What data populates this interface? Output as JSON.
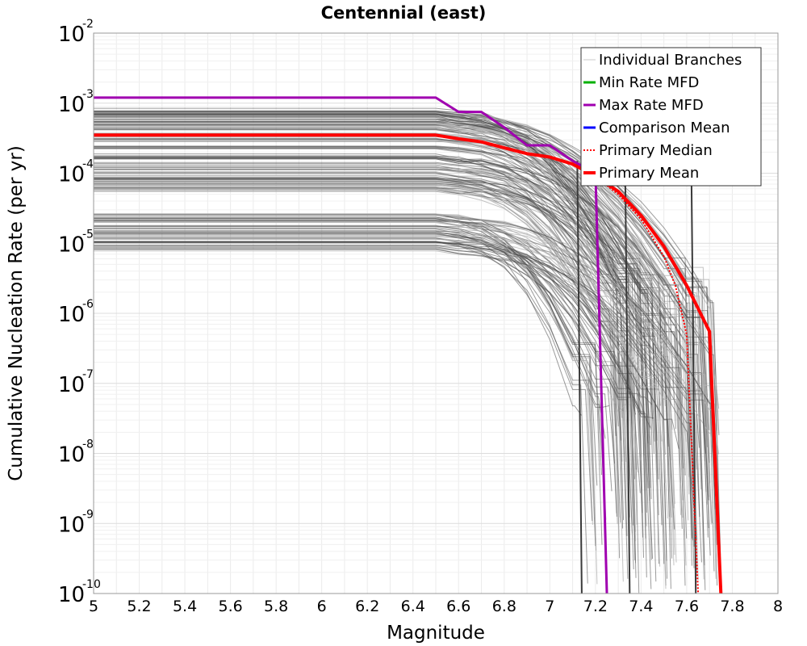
{
  "chart_data": {
    "type": "line",
    "title": "Centennial (east)",
    "xlabel": "Magnitude",
    "ylabel": "Cumulative Nucleation Rate (per yr)",
    "xlim": [
      5,
      8
    ],
    "ylim": [
      1e-10,
      0.01
    ],
    "y_scale": "log",
    "grid": true,
    "legend_position": "top-right",
    "x_ticks": [
      "5",
      "5.2",
      "5.4",
      "5.6",
      "5.8",
      "6",
      "6.2",
      "6.4",
      "6.6",
      "6.8",
      "7",
      "7.2",
      "7.4",
      "7.6",
      "7.8",
      "8"
    ],
    "y_ticks": [
      {
        "base": "10",
        "exp": "-10",
        "value": 1e-10
      },
      {
        "base": "10",
        "exp": "-9",
        "value": 1e-09
      },
      {
        "base": "10",
        "exp": "-8",
        "value": 1e-08
      },
      {
        "base": "10",
        "exp": "-7",
        "value": 1e-07
      },
      {
        "base": "10",
        "exp": "-6",
        "value": 1e-06
      },
      {
        "base": "10",
        "exp": "-5",
        "value": 1e-05
      },
      {
        "base": "10",
        "exp": "-4",
        "value": 0.0001
      },
      {
        "base": "10",
        "exp": "-3",
        "value": 0.001
      },
      {
        "base": "10",
        "exp": "-2",
        "value": 0.01
      }
    ],
    "legend": [
      {
        "label": "Individual Branches",
        "color": "#c8c8c8",
        "style": "solid"
      },
      {
        "label": "Min Rate MFD",
        "color": "#00b000",
        "style": "solid"
      },
      {
        "label": "Max Rate MFD",
        "color": "#a000b0",
        "style": "solid"
      },
      {
        "label": "Comparison Mean",
        "color": "#0000ff",
        "style": "solid"
      },
      {
        "label": " Primary Median",
        "color": "#ff0000",
        "style": "dotted"
      },
      {
        "label": "Primary Mean",
        "color": "#ff0000",
        "style": "solid"
      }
    ],
    "series": [
      {
        "label": "Max Rate MFD",
        "color": "#a000b0",
        "x": [
          5.0,
          6.5,
          6.6,
          6.7,
          6.8,
          6.9,
          7.0,
          7.1,
          7.2,
          7.25
        ],
        "y": [
          0.0012,
          0.0012,
          0.00075,
          0.00075,
          0.00045,
          0.00025,
          0.00025,
          0.00015,
          0.0001,
          1e-10
        ]
      },
      {
        "label": "Primary Mean",
        "color": "#ff0000",
        "x": [
          5.0,
          6.5,
          6.6,
          6.7,
          6.8,
          6.9,
          7.0,
          7.1,
          7.2,
          7.3,
          7.4,
          7.5,
          7.6,
          7.7,
          7.75
        ],
        "y": [
          0.00035,
          0.00035,
          0.00031,
          0.00028,
          0.00023,
          0.00019,
          0.00017,
          0.000135,
          9e-05,
          5.5e-05,
          2.5e-05,
          9e-06,
          2.5e-06,
          5.5e-07,
          1e-10
        ]
      },
      {
        "label": "Primary Median",
        "color": "#ff0000",
        "x": [
          5.0,
          6.5,
          6.6,
          6.7,
          6.8,
          6.9,
          7.0,
          7.1,
          7.2,
          7.3,
          7.4,
          7.5,
          7.55,
          7.6,
          7.65
        ],
        "y": [
          0.00035,
          0.00035,
          0.00031,
          0.00028,
          0.00023,
          0.00019,
          0.00017,
          0.000135,
          9e-05,
          5e-05,
          2.2e-05,
          6.5e-06,
          2.5e-06,
          5e-07,
          1e-10
        ]
      }
    ]
  }
}
